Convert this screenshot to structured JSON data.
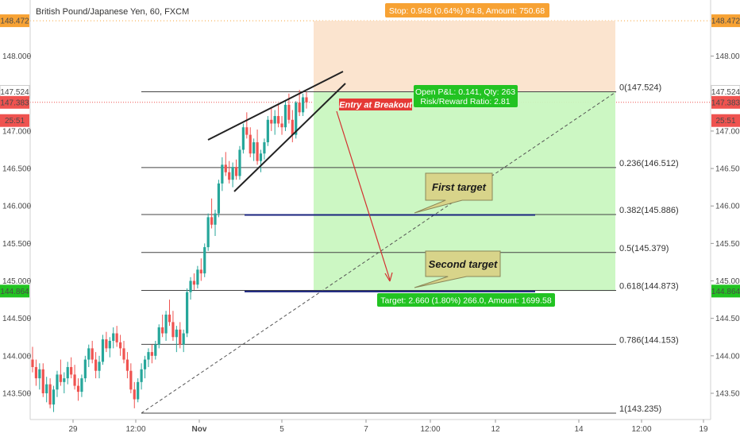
{
  "header": {
    "symbol_title": "British Pound/Japanese Yen, 60, FXCM"
  },
  "chart_data": {
    "type": "candlestick",
    "ylim": [
      143.2,
      148.62
    ],
    "y_ticks": [
      "148.000",
      "147.000",
      "146.500",
      "146.000",
      "145.500",
      "145.000",
      "144.500",
      "144.000",
      "143.500"
    ],
    "y_tick_values": [
      148.0,
      147.0,
      146.5,
      146.0,
      145.5,
      145.0,
      144.5,
      144.0,
      143.5
    ],
    "x_ticks": [
      "29",
      "12:00",
      "Nov",
      "5",
      "7",
      "12:00",
      "12",
      "14",
      "12:00",
      "19"
    ],
    "x_tick_bold": [
      false,
      false,
      true,
      false,
      false,
      false,
      false,
      false,
      false,
      false
    ],
    "price_tags": [
      {
        "label": "148.472",
        "value": 148.472,
        "color": "#f7a234"
      },
      {
        "label": "147.524",
        "value": 147.524,
        "color": "#ffffff"
      },
      {
        "label": "147.383",
        "value": 147.383,
        "color": "#ef5350"
      },
      {
        "label": "25:51",
        "value": 147.14,
        "color": "#ef5350"
      },
      {
        "label": "144.864",
        "value": 144.864,
        "color": "#22c322"
      }
    ],
    "left_tags": [
      {
        "label": "148.472",
        "value": 148.472,
        "color": "#f7a234"
      },
      {
        "label": "147.524",
        "value": 147.524,
        "color": "#ffffff"
      },
      {
        "label": "147.383",
        "value": 147.383,
        "color": "#ef5350"
      },
      {
        "label": "25:51",
        "value": 147.14,
        "color": "#ef5350"
      },
      {
        "label": "144.864",
        "value": 144.864,
        "color": "#22c322"
      }
    ],
    "fib_levels": [
      {
        "ratio": "0",
        "value": 147.524,
        "label": "0(147.524)"
      },
      {
        "ratio": "0.236",
        "value": 146.512,
        "label": "0.236(146.512)"
      },
      {
        "ratio": "0.382",
        "value": 145.886,
        "label": "0.382(145.886)"
      },
      {
        "ratio": "0.5",
        "value": 145.379,
        "label": "0.5(145.379)"
      },
      {
        "ratio": "0.618",
        "value": 144.873,
        "label": "0.618(144.873)"
      },
      {
        "ratio": "0.786",
        "value": 144.153,
        "label": "0.786(144.153)"
      },
      {
        "ratio": "1",
        "value": 143.235,
        "label": "1(143.235)"
      }
    ],
    "position": {
      "entry": 147.524,
      "stop": 148.472,
      "target": 144.864,
      "stop_label": "Stop: 0.948 (0.64%) 94.8, Amount: 750.68",
      "target_label": "Target: 2.660 (1.80%) 266.0, Amount: 1699.58",
      "pnl_label": "Open P&L: 0.141, Qty: 263",
      "rr_label": "Risk/Reward Ratio: 2.81"
    },
    "current_price": 147.383,
    "annotations": {
      "entry": "Entry at Breakout",
      "first_target": "First target",
      "second_target": "Second target"
    },
    "candles": [
      [
        143.95,
        144.12,
        143.78,
        143.85
      ],
      [
        143.85,
        143.95,
        143.6,
        143.7
      ],
      [
        143.7,
        143.9,
        143.55,
        143.82
      ],
      [
        143.82,
        143.9,
        143.45,
        143.5
      ],
      [
        143.5,
        143.72,
        143.38,
        143.62
      ],
      [
        143.62,
        143.7,
        143.3,
        143.35
      ],
      [
        143.35,
        143.6,
        143.25,
        143.55
      ],
      [
        143.55,
        143.8,
        143.45,
        143.75
      ],
      [
        143.75,
        143.95,
        143.6,
        143.65
      ],
      [
        143.65,
        143.78,
        143.5,
        143.7
      ],
      [
        143.7,
        143.92,
        143.62,
        143.85
      ],
      [
        143.85,
        143.98,
        143.7,
        143.75
      ],
      [
        143.75,
        143.88,
        143.55,
        143.6
      ],
      [
        143.6,
        143.7,
        143.4,
        143.52
      ],
      [
        143.52,
        143.75,
        143.45,
        143.7
      ],
      [
        143.7,
        144.0,
        143.65,
        143.95
      ],
      [
        143.95,
        144.15,
        143.85,
        144.1
      ],
      [
        144.1,
        144.2,
        143.9,
        143.95
      ],
      [
        143.95,
        144.05,
        143.7,
        143.8
      ],
      [
        143.8,
        144.0,
        143.7,
        143.92
      ],
      [
        143.92,
        144.28,
        143.88,
        144.22
      ],
      [
        144.22,
        144.32,
        144.05,
        144.1
      ],
      [
        144.1,
        144.25,
        143.98,
        144.2
      ],
      [
        144.2,
        144.38,
        144.1,
        144.3
      ],
      [
        144.3,
        144.4,
        144.12,
        144.18
      ],
      [
        144.18,
        144.28,
        144.0,
        144.1
      ],
      [
        144.1,
        144.2,
        143.9,
        143.95
      ],
      [
        143.95,
        144.05,
        143.7,
        143.8
      ],
      [
        143.8,
        143.9,
        143.5,
        143.55
      ],
      [
        143.55,
        143.65,
        143.3,
        143.42
      ],
      [
        143.42,
        143.7,
        143.38,
        143.65
      ],
      [
        143.65,
        143.9,
        143.55,
        143.82
      ],
      [
        143.82,
        144.0,
        143.7,
        143.95
      ],
      [
        143.95,
        144.1,
        143.85,
        144.05
      ],
      [
        144.05,
        144.15,
        143.9,
        144.0
      ],
      [
        144.0,
        144.2,
        143.95,
        144.15
      ],
      [
        144.15,
        144.42,
        144.1,
        144.38
      ],
      [
        144.38,
        144.55,
        144.25,
        144.3
      ],
      [
        144.3,
        144.6,
        144.2,
        144.55
      ],
      [
        144.55,
        144.75,
        144.4,
        144.45
      ],
      [
        144.45,
        144.6,
        144.2,
        144.25
      ],
      [
        144.25,
        144.4,
        144.05,
        144.35
      ],
      [
        144.35,
        144.45,
        144.1,
        144.15
      ],
      [
        144.15,
        144.35,
        144.05,
        144.3
      ],
      [
        144.3,
        144.9,
        144.25,
        144.85
      ],
      [
        144.85,
        145.05,
        144.75,
        145.0
      ],
      [
        145.0,
        145.1,
        144.88,
        144.95
      ],
      [
        144.95,
        145.2,
        144.9,
        145.15
      ],
      [
        145.15,
        145.3,
        145.0,
        145.1
      ],
      [
        145.1,
        145.5,
        145.05,
        145.45
      ],
      [
        145.45,
        145.9,
        145.4,
        145.85
      ],
      [
        145.85,
        146.1,
        145.7,
        145.75
      ],
      [
        145.75,
        145.95,
        145.6,
        145.9
      ],
      [
        145.9,
        146.35,
        145.85,
        146.3
      ],
      [
        146.3,
        146.65,
        146.2,
        146.55
      ],
      [
        146.55,
        146.72,
        146.4,
        146.45
      ],
      [
        146.45,
        146.6,
        146.3,
        146.35
      ],
      [
        146.35,
        146.58,
        146.25,
        146.52
      ],
      [
        146.52,
        146.62,
        146.35,
        146.4
      ],
      [
        146.4,
        146.8,
        146.35,
        146.75
      ],
      [
        146.75,
        147.1,
        146.7,
        147.05
      ],
      [
        147.05,
        147.25,
        146.9,
        146.95
      ],
      [
        146.95,
        147.05,
        146.65,
        146.7
      ],
      [
        146.7,
        146.9,
        146.6,
        146.85
      ],
      [
        146.85,
        147.02,
        146.55,
        146.6
      ],
      [
        146.6,
        146.75,
        146.45,
        146.7
      ],
      [
        146.7,
        146.9,
        146.62,
        146.85
      ],
      [
        146.85,
        147.2,
        146.8,
        147.15
      ],
      [
        147.15,
        147.3,
        147.0,
        147.1
      ],
      [
        147.1,
        147.28,
        146.95,
        147.2
      ],
      [
        147.2,
        147.35,
        147.05,
        147.1
      ],
      [
        147.1,
        147.2,
        146.95,
        147.05
      ],
      [
        147.05,
        147.4,
        147.0,
        147.35
      ],
      [
        147.35,
        147.5,
        147.1,
        147.15
      ],
      [
        147.15,
        147.28,
        146.85,
        146.95
      ],
      [
        146.95,
        147.4,
        146.9,
        147.38
      ],
      [
        147.38,
        147.55,
        147.2,
        147.25
      ],
      [
        147.25,
        147.5,
        147.2,
        147.45
      ],
      [
        147.45,
        147.52,
        147.3,
        147.383
      ]
    ]
  }
}
